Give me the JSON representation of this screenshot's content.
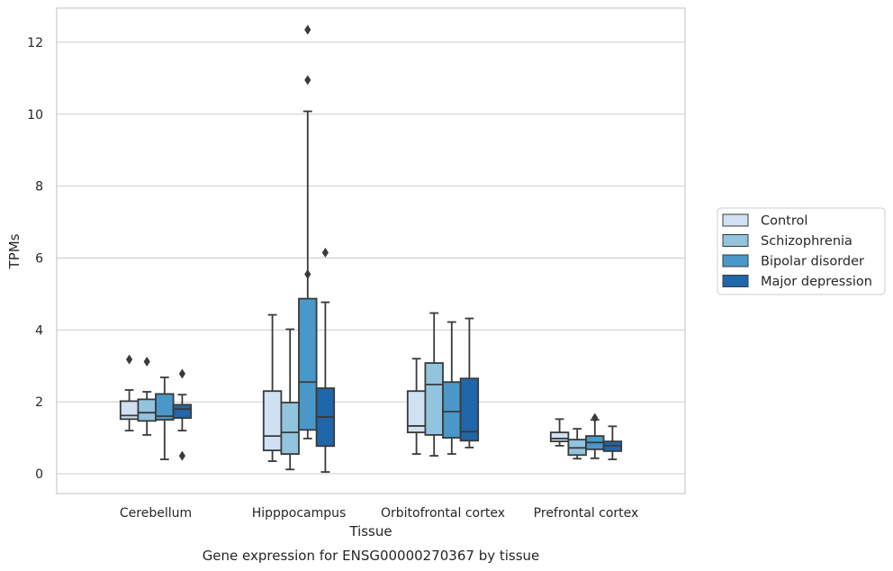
{
  "chart_data": {
    "type": "box",
    "title": "",
    "caption": "Gene expression for ENSG00000270367 by tissue",
    "xlabel": "Tissue",
    "ylabel": "TPMs",
    "ylim": [
      -0.55,
      12.95
    ],
    "yticks": [
      0,
      2,
      4,
      6,
      8,
      10,
      12
    ],
    "grid": "horizontal",
    "legend_position": "right",
    "categories": [
      "Cerebellum",
      "Hipppocampus",
      "Orbitofrontal cortex",
      "Prefrontal cortex"
    ],
    "series": [
      {
        "name": "Control",
        "color": "#cfe1f2",
        "boxes": [
          {
            "whisker_low": 1.2,
            "q1": 1.52,
            "median": 1.62,
            "q3": 2.02,
            "whisker_high": 2.33,
            "outliers": [
              3.18
            ]
          },
          {
            "whisker_low": 0.35,
            "q1": 0.65,
            "median": 1.05,
            "q3": 2.3,
            "whisker_high": 4.42,
            "outliers": []
          },
          {
            "whisker_low": 0.55,
            "q1": 1.15,
            "median": 1.33,
            "q3": 2.3,
            "whisker_high": 3.2,
            "outliers": []
          },
          {
            "whisker_low": 0.78,
            "q1": 0.9,
            "median": 0.98,
            "q3": 1.15,
            "whisker_high": 1.52,
            "outliers": []
          }
        ]
      },
      {
        "name": "Schizophrenia",
        "color": "#93c4de",
        "boxes": [
          {
            "whisker_low": 1.08,
            "q1": 1.47,
            "median": 1.7,
            "q3": 2.07,
            "whisker_high": 2.28,
            "outliers": [
              3.12
            ]
          },
          {
            "whisker_low": 0.12,
            "q1": 0.55,
            "median": 1.15,
            "q3": 1.98,
            "whisker_high": 4.02,
            "outliers": []
          },
          {
            "whisker_low": 0.5,
            "q1": 1.08,
            "median": 2.48,
            "q3": 3.08,
            "whisker_high": 4.47,
            "outliers": []
          },
          {
            "whisker_low": 0.42,
            "q1": 0.52,
            "median": 0.72,
            "q3": 0.95,
            "whisker_high": 1.25,
            "outliers": []
          }
        ]
      },
      {
        "name": "Bipolar disorder",
        "color": "#4a98c9",
        "boxes": [
          {
            "whisker_low": 0.4,
            "q1": 1.5,
            "median": 1.6,
            "q3": 2.22,
            "whisker_high": 2.68,
            "outliers": []
          },
          {
            "whisker_low": 0.98,
            "q1": 1.22,
            "median": 2.55,
            "q3": 4.87,
            "whisker_high": 10.08,
            "outliers": [
              5.55,
              10.95,
              12.35
            ]
          },
          {
            "whisker_low": 0.55,
            "q1": 1.0,
            "median": 1.73,
            "q3": 2.55,
            "whisker_high": 4.22,
            "outliers": []
          },
          {
            "whisker_low": 0.43,
            "q1": 0.68,
            "median": 0.87,
            "q3": 1.05,
            "whisker_high": 1.5,
            "outliers": [
              1.55
            ]
          }
        ]
      },
      {
        "name": "Major depression",
        "color": "#1f66aa",
        "boxes": [
          {
            "whisker_low": 1.2,
            "q1": 1.55,
            "median": 1.8,
            "q3": 1.92,
            "whisker_high": 2.2,
            "outliers": [
              0.5,
              2.78
            ]
          },
          {
            "whisker_low": 0.05,
            "q1": 0.77,
            "median": 1.58,
            "q3": 2.38,
            "whisker_high": 4.77,
            "outliers": [
              6.15
            ]
          },
          {
            "whisker_low": 0.73,
            "q1": 0.92,
            "median": 1.17,
            "q3": 2.65,
            "whisker_high": 4.32,
            "outliers": []
          },
          {
            "whisker_low": 0.4,
            "q1": 0.63,
            "median": 0.78,
            "q3": 0.9,
            "whisker_high": 1.32,
            "outliers": []
          }
        ]
      }
    ]
  }
}
